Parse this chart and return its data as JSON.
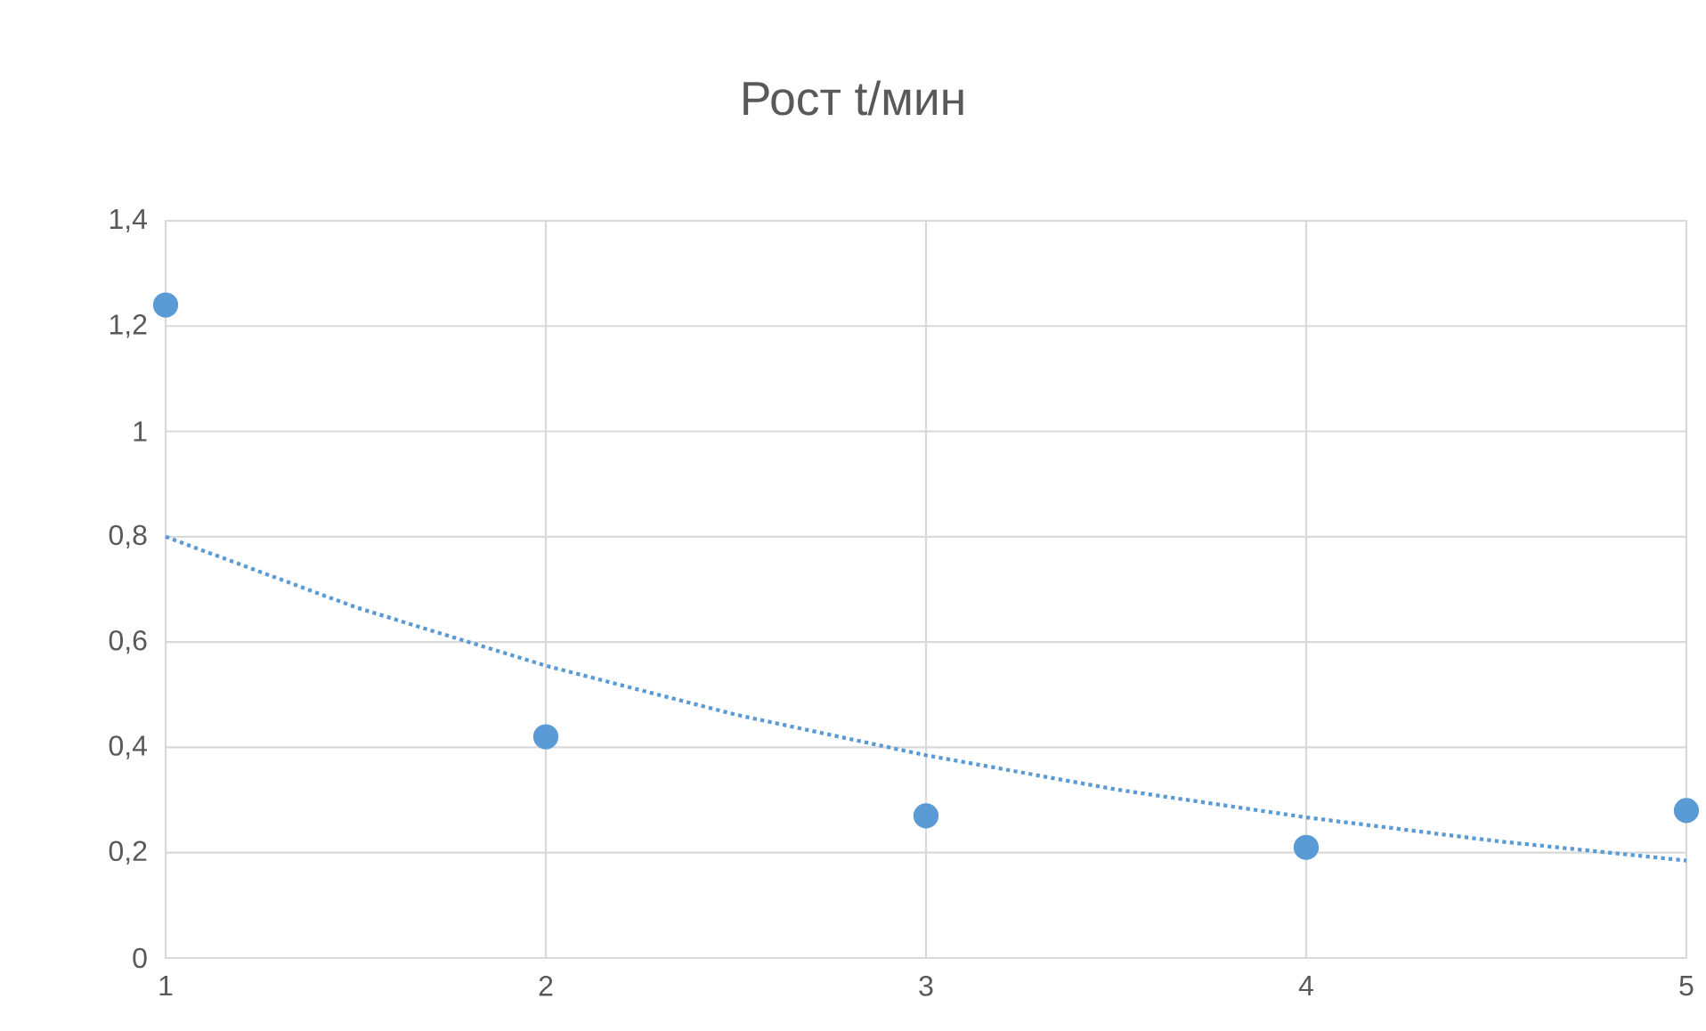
{
  "chart_data": {
    "type": "scatter",
    "title": "Рост t/мин",
    "series": [
      {
        "type": "scatter",
        "color": "#5b9bd5",
        "marker": "circle",
        "x": [
          1,
          2,
          3,
          4,
          5
        ],
        "values": [
          1.24,
          0.42,
          0.27,
          0.21,
          0.28
        ]
      },
      {
        "type": "line",
        "color": "#5b9bd5",
        "marker": "none",
        "line_style": "dotted",
        "x": [
          1,
          1.5,
          2,
          2.5,
          3,
          3.5,
          4,
          4.5,
          5
        ],
        "values": [
          0.8,
          0.666,
          0.555,
          0.462,
          0.385,
          0.32,
          0.267,
          0.222,
          0.185
        ]
      }
    ],
    "xlim": [
      1,
      5
    ],
    "xticks": [
      1,
      2,
      3,
      4,
      5
    ],
    "ylim": [
      0,
      1.4
    ],
    "yticks": [
      0,
      {
        "value": 0.2,
        "label": "0,2"
      },
      {
        "value": 0.4,
        "label": "0,4"
      },
      {
        "value": 0.6,
        "label": "0,6"
      },
      {
        "value": 0.8,
        "label": "0,8"
      },
      1,
      {
        "value": 1.2,
        "label": "1,2"
      },
      {
        "value": 1.4,
        "label": "1,4"
      }
    ],
    "grid": true
  }
}
